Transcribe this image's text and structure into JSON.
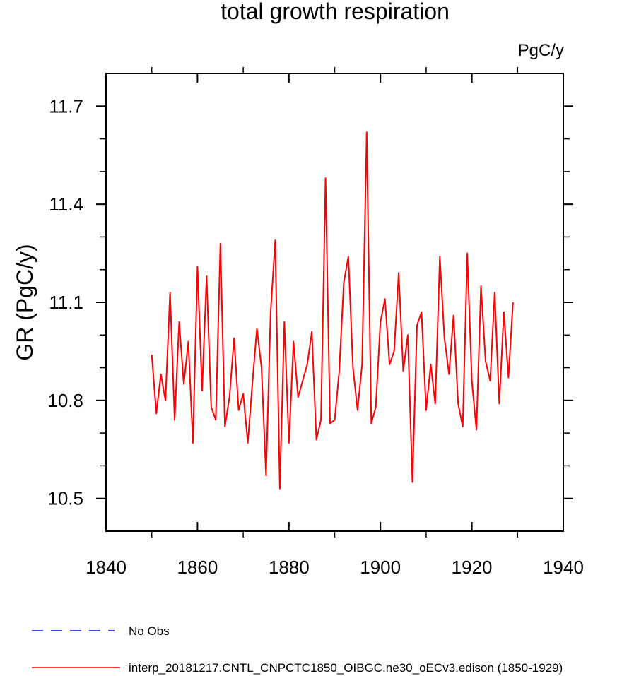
{
  "chart_data": {
    "type": "line",
    "title": "total growth respiration",
    "units_label": "PgC/y",
    "ylabel": "GR  (PgC/y)",
    "xlabel": "",
    "xlim": [
      1840,
      1940
    ],
    "ylim": [
      10.4,
      11.8
    ],
    "x_ticks": [
      1840,
      1860,
      1880,
      1900,
      1920,
      1940
    ],
    "x_tick_labels": [
      "1840",
      "1860",
      "1880",
      "1900",
      "1920",
      "1940"
    ],
    "y_ticks": [
      10.5,
      10.8,
      11.1,
      11.4,
      11.7
    ],
    "y_tick_labels": [
      "10.5",
      "10.8",
      "11.1",
      "11.4",
      "11.7"
    ],
    "grid": false,
    "legend_position": "bottom",
    "series": [
      {
        "name": "interp_20181217.CNTL_CNPCTC1850_OIBGC.ne30_oECv3.edison (1850-1929)",
        "color": "#ff0000",
        "style": "solid",
        "x": [
          1850,
          1851,
          1852,
          1853,
          1854,
          1855,
          1856,
          1857,
          1858,
          1859,
          1860,
          1861,
          1862,
          1863,
          1864,
          1865,
          1866,
          1867,
          1868,
          1869,
          1870,
          1871,
          1872,
          1873,
          1874,
          1875,
          1876,
          1877,
          1878,
          1879,
          1880,
          1881,
          1882,
          1883,
          1884,
          1885,
          1886,
          1887,
          1888,
          1889,
          1890,
          1891,
          1892,
          1893,
          1894,
          1895,
          1896,
          1897,
          1898,
          1899,
          1900,
          1901,
          1902,
          1903,
          1904,
          1905,
          1906,
          1907,
          1908,
          1909,
          1910,
          1911,
          1912,
          1913,
          1914,
          1915,
          1916,
          1917,
          1918,
          1919,
          1920,
          1921,
          1922,
          1923,
          1924,
          1925,
          1926,
          1927,
          1928,
          1929
        ],
        "values": [
          10.94,
          10.76,
          10.88,
          10.8,
          11.13,
          10.74,
          11.04,
          10.85,
          10.98,
          10.67,
          11.21,
          10.83,
          11.18,
          10.78,
          10.74,
          11.28,
          10.72,
          10.81,
          10.99,
          10.77,
          10.82,
          10.67,
          10.85,
          11.02,
          10.9,
          10.57,
          11.07,
          11.29,
          10.53,
          11.04,
          10.67,
          10.98,
          10.81,
          10.86,
          10.91,
          11.01,
          10.68,
          10.74,
          11.48,
          10.73,
          10.74,
          10.89,
          11.16,
          11.24,
          10.9,
          10.77,
          10.91,
          11.62,
          10.73,
          10.78,
          11.04,
          11.11,
          10.91,
          10.95,
          11.19,
          10.89,
          11.0,
          10.55,
          11.03,
          11.07,
          10.77,
          10.91,
          10.79,
          11.24,
          10.99,
          10.88,
          11.06,
          10.79,
          10.72,
          11.25,
          10.86,
          10.71,
          11.15,
          10.92,
          10.86,
          11.13,
          10.79,
          11.07,
          10.87,
          11.1
        ]
      },
      {
        "name": "No Obs",
        "color": "#0000ff",
        "style": "dashed",
        "x": [],
        "values": []
      }
    ]
  }
}
